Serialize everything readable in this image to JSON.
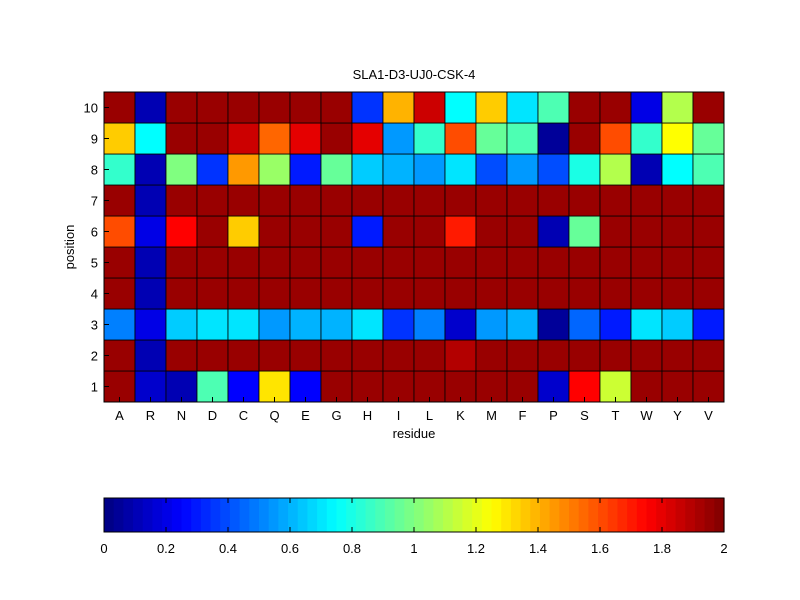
{
  "chart_data": {
    "type": "heatmap",
    "title": "SLA1-D3-UJ0-CSK-4",
    "xlabel": "residue",
    "ylabel": "position",
    "x_categories": [
      "A",
      "R",
      "N",
      "D",
      "C",
      "Q",
      "E",
      "G",
      "H",
      "I",
      "L",
      "K",
      "M",
      "F",
      "P",
      "S",
      "T",
      "W",
      "Y",
      "V"
    ],
    "y_categories": [
      "1",
      "2",
      "3",
      "4",
      "5",
      "6",
      "7",
      "8",
      "9",
      "10"
    ],
    "values": [
      [
        1.95,
        0.15,
        0.1,
        0.9,
        0.25,
        1.3,
        0.25,
        1.95,
        1.95,
        1.95,
        1.95,
        1.95,
        1.95,
        1.95,
        0.15,
        1.75,
        1.15,
        1.95,
        1.95,
        1.95
      ],
      [
        1.95,
        0.1,
        1.95,
        1.95,
        1.95,
        1.95,
        1.95,
        1.95,
        1.95,
        1.95,
        1.95,
        1.9,
        1.95,
        1.95,
        1.95,
        1.95,
        1.95,
        1.95,
        1.95,
        1.95
      ],
      [
        0.5,
        0.2,
        0.65,
        0.7,
        0.7,
        0.55,
        0.6,
        0.6,
        0.7,
        0.35,
        0.5,
        0.15,
        0.55,
        0.6,
        0.05,
        0.45,
        0.3,
        0.7,
        0.65,
        0.3
      ],
      [
        1.95,
        0.1,
        1.95,
        1.95,
        1.95,
        1.95,
        1.95,
        1.95,
        1.95,
        1.95,
        1.95,
        1.95,
        1.95,
        1.95,
        1.95,
        1.95,
        1.95,
        1.95,
        1.95,
        1.95
      ],
      [
        1.95,
        0.1,
        1.95,
        1.95,
        1.95,
        1.95,
        1.95,
        1.95,
        1.95,
        1.95,
        1.95,
        1.95,
        1.95,
        1.95,
        1.95,
        1.95,
        1.95,
        1.95,
        1.95,
        1.95
      ],
      [
        1.6,
        0.2,
        1.75,
        1.95,
        1.35,
        1.95,
        1.95,
        1.95,
        0.3,
        1.95,
        1.95,
        1.7,
        1.95,
        1.95,
        0.1,
        0.95,
        1.95,
        1.95,
        1.95,
        1.95
      ],
      [
        1.95,
        0.1,
        1.95,
        1.95,
        1.95,
        1.95,
        1.95,
        1.95,
        1.95,
        1.95,
        1.95,
        1.95,
        1.95,
        1.95,
        1.95,
        1.95,
        1.95,
        1.95,
        1.95,
        1.95
      ],
      [
        0.85,
        0.1,
        1.0,
        0.35,
        1.45,
        1.05,
        0.3,
        0.95,
        0.65,
        0.6,
        0.55,
        0.7,
        0.4,
        0.55,
        0.4,
        0.8,
        1.1,
        0.1,
        0.75,
        0.9
      ],
      [
        1.35,
        0.75,
        1.95,
        1.95,
        1.85,
        1.55,
        1.8,
        1.95,
        1.8,
        0.55,
        0.85,
        1.6,
        0.95,
        0.9,
        0.05,
        1.95,
        1.6,
        0.85,
        1.25,
        0.95
      ],
      [
        1.95,
        0.1,
        1.95,
        1.95,
        1.95,
        1.95,
        1.95,
        1.95,
        0.35,
        1.4,
        1.85,
        0.75,
        1.35,
        0.7,
        0.9,
        1.95,
        1.95,
        0.2,
        1.1,
        1.95
      ]
    ],
    "colormap": "jet",
    "clim": [
      0,
      2
    ],
    "colorbar": {
      "orientation": "horizontal",
      "placement": "bottom",
      "ticks": [
        0,
        0.2,
        0.4,
        0.6,
        0.8,
        1,
        1.2,
        1.4,
        1.6,
        1.8,
        2
      ],
      "tick_labels": [
        "0",
        "0.2",
        "0.4",
        "0.6",
        "0.8",
        "1",
        "1.2",
        "1.4",
        "1.6",
        "1.8",
        "2"
      ]
    },
    "grid": false
  }
}
